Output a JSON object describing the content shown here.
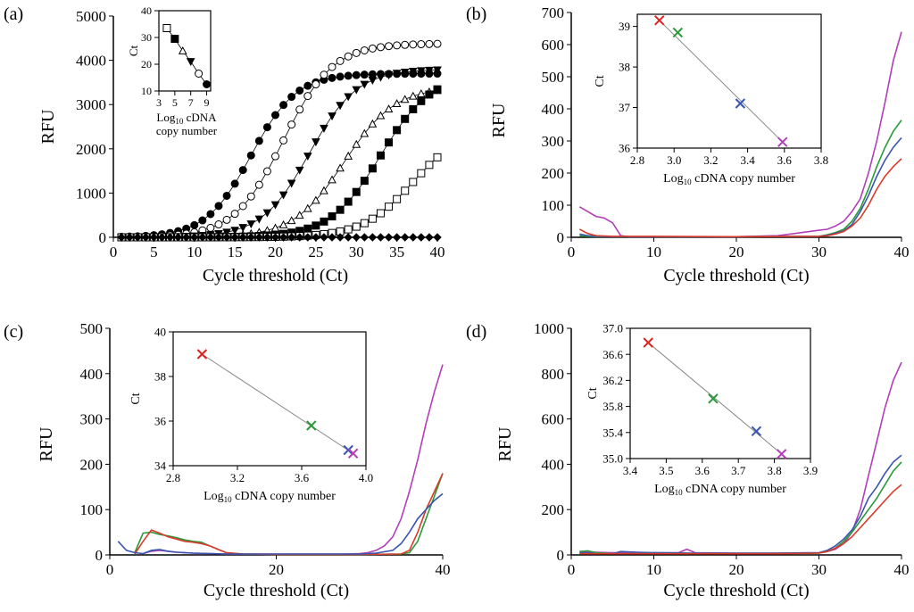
{
  "chart_data": [
    {
      "panel": "(a)",
      "type": "scatter",
      "xlabel": "Cycle threshold (Ct)",
      "ylabel": "RFU",
      "xlim": [
        0,
        40
      ],
      "ylim": [
        0,
        5000
      ],
      "xticks": [
        0,
        5,
        10,
        15,
        20,
        25,
        30,
        35,
        40
      ],
      "yticks": [
        0,
        1000,
        2000,
        3000,
        4000,
        5000
      ],
      "series": [
        {
          "name": "filled-circle",
          "marker": "filled-circle",
          "sigmoid": {
            "mid": 17,
            "max": 3700,
            "k": 0.36
          }
        },
        {
          "name": "open-circle",
          "marker": "open-circle",
          "sigmoid": {
            "mid": 21,
            "max": 4380,
            "k": 0.33
          }
        },
        {
          "name": "filled-triangle",
          "marker": "filled-triangle",
          "sigmoid": {
            "mid": 24.2,
            "max": 3800,
            "k": 0.34
          }
        },
        {
          "name": "open-triangle",
          "marker": "open-triangle",
          "sigmoid": {
            "mid": 28.5,
            "max": 3400,
            "k": 0.32
          }
        },
        {
          "name": "filled-square",
          "marker": "filled-square",
          "sigmoid": {
            "mid": 33,
            "max": 3700,
            "k": 0.32
          }
        },
        {
          "name": "open-square",
          "marker": "open-square",
          "sigmoid": {
            "mid": 37,
            "max": 2500,
            "k": 0.32
          }
        },
        {
          "name": "filled-diamond",
          "marker": "filled-diamond",
          "sigmoid": {
            "mid": 80,
            "max": 0,
            "k": 0.3
          }
        }
      ],
      "inset": {
        "type": "scatter",
        "xlabel_line1": "Log",
        "xlabel_sub": "10",
        "xlabel_line1_rest": " cDNA",
        "xlabel_line2": "copy number",
        "ylabel": "Ct",
        "xlim": [
          3,
          9.5
        ],
        "ylim": [
          10,
          40
        ],
        "xticks": [
          3,
          5,
          7,
          9
        ],
        "yticks": [
          10,
          20,
          30,
          40
        ],
        "points": [
          {
            "x": 4,
            "y": 33.5,
            "marker": "open-square"
          },
          {
            "x": 5,
            "y": 29.5,
            "marker": "filled-square"
          },
          {
            "x": 6,
            "y": 25,
            "marker": "open-triangle"
          },
          {
            "x": 7,
            "y": 21,
            "marker": "filled-triangle"
          },
          {
            "x": 8,
            "y": 16.5,
            "marker": "open-circle"
          },
          {
            "x": 9,
            "y": 12.5,
            "marker": "filled-circle"
          }
        ]
      }
    },
    {
      "panel": "(b)",
      "type": "line",
      "xlabel": "Cycle threshold (Ct)",
      "ylabel": "RFU",
      "xlim": [
        0,
        40
      ],
      "ylim": [
        0,
        700
      ],
      "xticks": [
        0,
        10,
        20,
        30,
        40
      ],
      "yticks": [
        0,
        100,
        200,
        300,
        400,
        500,
        600,
        700
      ],
      "series": [
        {
          "name": "purple",
          "color": "#b23fb8",
          "x": [
            1,
            2,
            3,
            4,
            5,
            6,
            7,
            10,
            20,
            25,
            28,
            30,
            31,
            32,
            33,
            34,
            35,
            36,
            37,
            38,
            39,
            40
          ],
          "y": [
            95,
            80,
            65,
            60,
            45,
            5,
            2,
            2,
            2,
            5,
            15,
            22,
            25,
            35,
            50,
            80,
            120,
            200,
            300,
            420,
            550,
            640
          ]
        },
        {
          "name": "green",
          "color": "#2a9a3a",
          "x": [
            1,
            2,
            3,
            5,
            10,
            20,
            30,
            31,
            32,
            33,
            34,
            35,
            36,
            37,
            38,
            39,
            40
          ],
          "y": [
            5,
            3,
            2,
            2,
            2,
            2,
            3,
            8,
            15,
            25,
            50,
            90,
            150,
            220,
            280,
            330,
            365
          ]
        },
        {
          "name": "blue",
          "color": "#3a55b0",
          "x": [
            1,
            2,
            3,
            5,
            10,
            20,
            30,
            31,
            32,
            33,
            34,
            35,
            36,
            37,
            38,
            39,
            40
          ],
          "y": [
            10,
            5,
            3,
            2,
            2,
            2,
            3,
            6,
            12,
            20,
            40,
            80,
            130,
            190,
            240,
            280,
            310
          ]
        },
        {
          "name": "red",
          "color": "#d93a2a",
          "x": [
            1,
            2,
            3,
            5,
            10,
            20,
            30,
            31,
            32,
            33,
            34,
            35,
            36,
            37,
            38,
            39,
            40
          ],
          "y": [
            25,
            12,
            5,
            3,
            3,
            2,
            3,
            5,
            10,
            18,
            35,
            60,
            100,
            150,
            190,
            220,
            245
          ]
        }
      ],
      "inset": {
        "type": "scatter",
        "xlabel": "cDNA copy number",
        "xlabel_prefix": "Log",
        "xlabel_sub": "10",
        "ylabel": "Ct",
        "xlim": [
          2.8,
          3.8
        ],
        "ylim": [
          36,
          39.3
        ],
        "xticks": [
          "2.8",
          "3.0",
          "3.2",
          "3.4",
          "3.6",
          "3.8"
        ],
        "yticks": [
          "36",
          "37",
          "38",
          "39"
        ],
        "points": [
          {
            "x": 2.92,
            "y": 39.15,
            "color": "#e02020"
          },
          {
            "x": 3.02,
            "y": 38.85,
            "color": "#2a9a3a"
          },
          {
            "x": 3.36,
            "y": 37.1,
            "color": "#3a55b0"
          },
          {
            "x": 3.59,
            "y": 36.15,
            "color": "#b23fb8"
          }
        ]
      }
    },
    {
      "panel": "(c)",
      "type": "line",
      "xlabel": "Cycle threshold (Ct)",
      "ylabel": "RFU",
      "xlim": [
        0,
        40
      ],
      "ylim": [
        0,
        500
      ],
      "xticks": [
        0,
        20,
        40
      ],
      "yticks": [
        0,
        100,
        200,
        300,
        400,
        500
      ],
      "series": [
        {
          "name": "purple",
          "color": "#b23fb8",
          "x": [
            4,
            5,
            6,
            7,
            8,
            10,
            12,
            14,
            20,
            28,
            30,
            31,
            32,
            33,
            34,
            35,
            36,
            37,
            38,
            39,
            40
          ],
          "y": [
            3,
            8,
            10,
            8,
            6,
            4,
            3,
            2,
            2,
            2,
            3,
            5,
            10,
            20,
            40,
            80,
            140,
            210,
            290,
            360,
            420
          ]
        },
        {
          "name": "green",
          "color": "#2a9a3a",
          "x": [
            3,
            4,
            5,
            6,
            7,
            8,
            9,
            10,
            11,
            12,
            14,
            16,
            20,
            30,
            35,
            36,
            37,
            38,
            39,
            40
          ],
          "y": [
            5,
            48,
            50,
            45,
            42,
            38,
            33,
            30,
            28,
            20,
            5,
            2,
            1,
            1,
            2,
            5,
            30,
            80,
            130,
            180
          ]
        },
        {
          "name": "red",
          "color": "#d93a2a",
          "x": [
            3,
            4,
            5,
            6,
            7,
            8,
            9,
            10,
            11,
            12,
            13,
            14,
            16,
            20,
            30,
            35,
            36,
            37,
            38,
            39,
            40
          ],
          "y": [
            2,
            30,
            55,
            48,
            40,
            35,
            30,
            28,
            25,
            20,
            12,
            5,
            2,
            1,
            1,
            2,
            10,
            50,
            100,
            140,
            180
          ]
        },
        {
          "name": "blue",
          "color": "#3a55b0",
          "x": [
            1,
            2,
            3,
            4,
            5,
            6,
            7,
            8,
            10,
            12,
            14,
            20,
            30,
            32,
            34,
            35,
            36,
            37,
            38,
            39,
            40
          ],
          "y": [
            30,
            10,
            5,
            3,
            10,
            12,
            8,
            6,
            4,
            3,
            2,
            2,
            2,
            4,
            10,
            25,
            50,
            80,
            100,
            120,
            135
          ]
        }
      ],
      "inset": {
        "type": "scatter",
        "xlabel": "cDNA copy number",
        "xlabel_prefix": "Log",
        "xlabel_sub": "10",
        "ylabel": "Ct",
        "xlim": [
          2.8,
          4.0
        ],
        "ylim": [
          34,
          40
        ],
        "xticks": [
          "2.8",
          "3.2",
          "3.6",
          "4.0"
        ],
        "yticks": [
          "34",
          "36",
          "38",
          "40"
        ],
        "points": [
          {
            "x": 2.98,
            "y": 39.0,
            "color": "#e02020"
          },
          {
            "x": 3.66,
            "y": 35.8,
            "color": "#2a9a3a"
          },
          {
            "x": 3.89,
            "y": 34.7,
            "color": "#3a55b0"
          },
          {
            "x": 3.92,
            "y": 34.55,
            "color": "#b23fb8"
          }
        ]
      }
    },
    {
      "panel": "(d)",
      "type": "line",
      "xlabel": "Cycle threshold (Ct)",
      "ylabel": "RFU",
      "xlim": [
        0,
        40
      ],
      "ylim": [
        0,
        1000
      ],
      "xticks": [
        0,
        10,
        20,
        30,
        40
      ],
      "yticks": [
        0,
        200,
        400,
        600,
        800,
        1000
      ],
      "series": [
        {
          "name": "purple",
          "color": "#b23fb8",
          "x": [
            1,
            3,
            5,
            8,
            10,
            13,
            14,
            15,
            20,
            25,
            30,
            31,
            32,
            33,
            34,
            35,
            36,
            37,
            38,
            39,
            40
          ],
          "y": [
            15,
            12,
            10,
            8,
            10,
            10,
            25,
            10,
            8,
            8,
            10,
            15,
            25,
            50,
            100,
            200,
            350,
            500,
            650,
            770,
            850
          ]
        },
        {
          "name": "blue",
          "color": "#3a55b0",
          "x": [
            1,
            3,
            5,
            6,
            8,
            10,
            15,
            20,
            25,
            30,
            31,
            32,
            33,
            34,
            35,
            36,
            37,
            38,
            39,
            40
          ],
          "y": [
            10,
            8,
            5,
            15,
            12,
            10,
            8,
            8,
            8,
            10,
            20,
            40,
            70,
            110,
            170,
            250,
            300,
            360,
            410,
            440
          ]
        },
        {
          "name": "green",
          "color": "#2a9a3a",
          "x": [
            1,
            2,
            3,
            5,
            10,
            15,
            20,
            25,
            30,
            31,
            32,
            33,
            34,
            35,
            36,
            37,
            38,
            39,
            40
          ],
          "y": [
            15,
            18,
            10,
            5,
            5,
            5,
            5,
            5,
            8,
            15,
            30,
            60,
            100,
            150,
            200,
            250,
            310,
            370,
            410
          ]
        },
        {
          "name": "red",
          "color": "#d93a2a",
          "x": [
            1,
            3,
            5,
            10,
            15,
            20,
            25,
            30,
            31,
            32,
            33,
            34,
            35,
            36,
            37,
            38,
            39,
            40
          ],
          "y": [
            5,
            5,
            5,
            5,
            5,
            5,
            5,
            8,
            15,
            30,
            50,
            80,
            120,
            160,
            200,
            240,
            280,
            310
          ]
        }
      ],
      "inset": {
        "type": "scatter",
        "xlabel": "cDNA copy number",
        "xlabel_prefix": "Log",
        "xlabel_sub": "10",
        "ylabel": "Ct",
        "xlim": [
          3.4,
          3.9
        ],
        "ylim": [
          35.0,
          37.0
        ],
        "xticks": [
          "3.4",
          "3.5",
          "3.6",
          "3.7",
          "3.8",
          "3.9"
        ],
        "yticks": [
          "35.0",
          "35.4",
          "35.8",
          "36.2",
          "36.6",
          "37.0"
        ],
        "points": [
          {
            "x": 3.45,
            "y": 36.78,
            "color": "#e02020"
          },
          {
            "x": 3.63,
            "y": 35.92,
            "color": "#2a9a3a"
          },
          {
            "x": 3.75,
            "y": 35.42,
            "color": "#3a55b0"
          },
          {
            "x": 3.82,
            "y": 35.07,
            "color": "#b23fb8"
          }
        ]
      }
    }
  ]
}
